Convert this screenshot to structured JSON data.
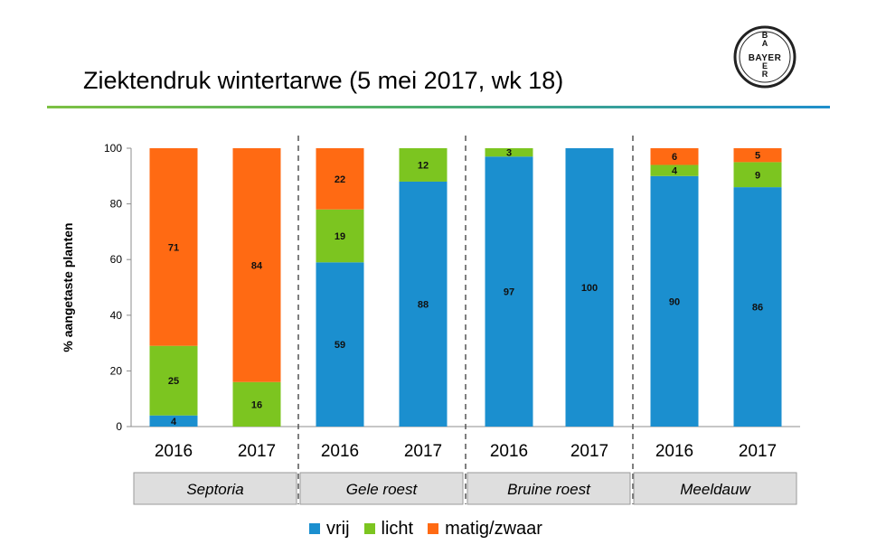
{
  "title": "Ziektendruk wintertarwe (5 mei 2017, wk 18)",
  "logo": {
    "name": "Bayer logo",
    "letters": "BAYER"
  },
  "colors": {
    "vrij": "#1b8fcf",
    "licht": "#7cc520",
    "matig_zwaar": "#ff6a13",
    "category_box": "#dedede",
    "accent_rule_start": "#7dc143",
    "accent_rule_end": "#1f8fcc"
  },
  "chart_data": {
    "type": "bar",
    "stacked": true,
    "ylabel": "% aangetaste planten",
    "xlabel": "",
    "ylim": [
      0,
      100
    ],
    "yticks": [
      0,
      20,
      40,
      60,
      80,
      100
    ],
    "groups": [
      {
        "name": "Septoria",
        "categories": [
          "2016",
          "2017"
        ]
      },
      {
        "name": "Gele roest",
        "categories": [
          "2016",
          "2017"
        ]
      },
      {
        "name": "Bruine roest",
        "categories": [
          "2016",
          "2017"
        ]
      },
      {
        "name": "Meeldauw",
        "categories": [
          "2016",
          "2017"
        ]
      }
    ],
    "categories": [
      "2016",
      "2017",
      "2016",
      "2017",
      "2016",
      "2017",
      "2016",
      "2017"
    ],
    "series": [
      {
        "name": "vrij",
        "values": [
          4,
          0,
          59,
          88,
          97,
          100,
          90,
          86
        ],
        "labels": [
          "4",
          "",
          "59",
          "88",
          "97",
          "100",
          "90",
          "86"
        ]
      },
      {
        "name": "licht",
        "values": [
          25,
          16,
          19,
          12,
          3,
          0,
          4,
          9
        ],
        "labels": [
          "25",
          "16",
          "19",
          "12",
          "3",
          "",
          "4",
          "9"
        ]
      },
      {
        "name": "matig/zwaar",
        "values": [
          71,
          84,
          22,
          0,
          0,
          0,
          6,
          5
        ],
        "labels": [
          "71",
          "84",
          "22",
          "",
          "",
          "",
          "6",
          "5"
        ]
      }
    ],
    "legend_position": "bottom",
    "grid": false,
    "group_separators": "dashed"
  }
}
